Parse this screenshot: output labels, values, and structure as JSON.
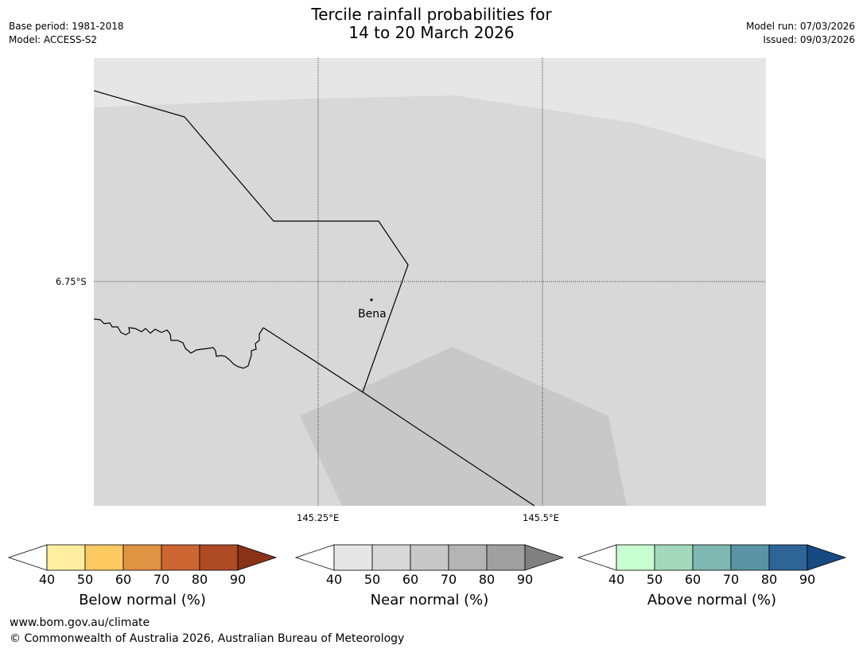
{
  "header": {
    "title_line1": "Tercile rainfall probabilities for",
    "title_line2": "14 to 20 March 2026",
    "base_period": "Base period: 1981-2018",
    "model": "Model: ACCESS-S2",
    "model_run": "Model run: 07/03/2026",
    "issued": "Issued: 09/03/2026"
  },
  "map": {
    "lat_label": "6.75°S",
    "lon_labels": [
      "145.25°E",
      "145.5°E"
    ],
    "place_label": "Bena",
    "colors": {
      "background_light": "#e6e6e6",
      "background_mid": "#d8d8d8",
      "patch_dark": "#c8c8c8",
      "line": "#000000"
    }
  },
  "colorbars": [
    {
      "label": "Below normal (%)",
      "ticks": [
        "40",
        "50",
        "60",
        "70",
        "80",
        "90"
      ],
      "colors": [
        "#ffeea0",
        "#fdc961",
        "#e09343",
        "#cc6633",
        "#ad4b25",
        "#8a3218"
      ]
    },
    {
      "label": "Near normal (%)",
      "ticks": [
        "40",
        "50",
        "60",
        "70",
        "80",
        "90"
      ],
      "colors": [
        "#e6e6e6",
        "#d8d8d8",
        "#c8c8c8",
        "#b4b4b4",
        "#a0a0a0",
        "#808080"
      ]
    },
    {
      "label": "Above normal (%)",
      "ticks": [
        "40",
        "50",
        "60",
        "70",
        "80",
        "90"
      ],
      "colors": [
        "#c8ffd0",
        "#a4d8bc",
        "#7fb8b0",
        "#5a94a4",
        "#2e6496",
        "#174a80"
      ]
    }
  ],
  "footer": {
    "url": "www.bom.gov.au/climate",
    "copyright": "© Commonwealth of Australia 2026, Australian Bureau of Meteorology"
  }
}
